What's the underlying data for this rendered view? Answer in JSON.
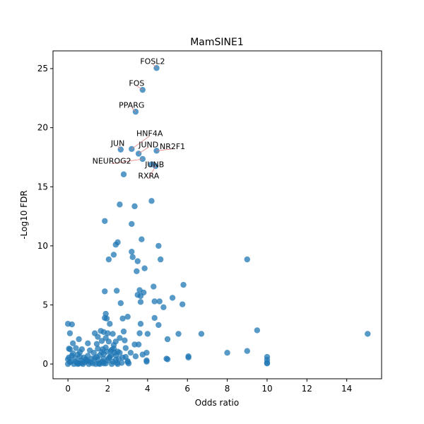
{
  "chart_data": {
    "type": "scatter",
    "title": "MamSINE1",
    "xlabel": "Odds ratio",
    "ylabel": "-Log10 FDR",
    "xlim": [
      -0.75,
      15.75
    ],
    "ylim": [
      -1.25,
      26.5
    ],
    "xticks": [
      0,
      2,
      4,
      6,
      8,
      10,
      12,
      14
    ],
    "yticks": [
      0,
      5,
      10,
      15,
      20,
      25
    ],
    "grid": false,
    "point_color": "#1f77b4",
    "annotation_line_color": "#e08080",
    "labeled_points": [
      {
        "label": "FOSL2",
        "x": 4.45,
        "y": 25.05,
        "label_x": 4.25,
        "label_y": 25.4
      },
      {
        "label": "FOS",
        "x": 3.75,
        "y": 23.2,
        "label_x": 3.45,
        "label_y": 23.55
      },
      {
        "label": "PPARG",
        "x": 3.4,
        "y": 21.35,
        "label_x": 3.2,
        "label_y": 21.7
      },
      {
        "label": "HNF4A",
        "x": 3.2,
        "y": 18.2,
        "label_x": 4.1,
        "label_y": 19.3
      },
      {
        "label": "JUN",
        "x": 2.65,
        "y": 18.15,
        "label_x": 2.5,
        "label_y": 18.45
      },
      {
        "label": "JUND",
        "x": 3.55,
        "y": 17.8,
        "label_x": 4.05,
        "label_y": 18.35
      },
      {
        "label": "NR2F1",
        "x": 4.45,
        "y": 18.05,
        "label_x": 5.25,
        "label_y": 18.2
      },
      {
        "label": "NEUROG2",
        "x": 3.75,
        "y": 17.35,
        "label_x": 2.2,
        "label_y": 16.95
      },
      {
        "label": "JUNB",
        "x": 4.2,
        "y": 16.9,
        "label_x": 4.35,
        "label_y": 16.65
      },
      {
        "label": "RXRA",
        "x": 4.4,
        "y": 16.75,
        "label_x": 4.05,
        "label_y": 15.7
      }
    ],
    "points": [
      [
        4.45,
        25.05
      ],
      [
        3.75,
        23.2
      ],
      [
        3.4,
        21.35
      ],
      [
        2.65,
        18.15
      ],
      [
        3.2,
        18.2
      ],
      [
        3.55,
        17.8
      ],
      [
        4.45,
        18.05
      ],
      [
        3.75,
        17.35
      ],
      [
        4.2,
        16.9
      ],
      [
        4.4,
        16.75
      ],
      [
        2.8,
        16.05
      ],
      [
        4.2,
        13.8
      ],
      [
        2.6,
        13.5
      ],
      [
        3.35,
        13.35
      ],
      [
        1.85,
        12.1
      ],
      [
        3.2,
        11.85
      ],
      [
        3.7,
        10.55
      ],
      [
        2.5,
        10.3
      ],
      [
        2.4,
        10.1
      ],
      [
        4.55,
        10.0
      ],
      [
        3.2,
        9.5
      ],
      [
        2.3,
        9.25
      ],
      [
        2.05,
        8.85
      ],
      [
        3.25,
        9.05
      ],
      [
        3.5,
        8.7
      ],
      [
        4.65,
        8.85
      ],
      [
        9.0,
        8.85
      ],
      [
        3.85,
        8.1
      ],
      [
        3.45,
        7.85
      ],
      [
        5.8,
        6.7
      ],
      [
        4.3,
        6.55
      ],
      [
        1.85,
        6.15
      ],
      [
        2.45,
        6.2
      ],
      [
        3.6,
        6.25
      ],
      [
        3.8,
        6.05
      ],
      [
        3.5,
        5.85
      ],
      [
        3.65,
        5.75
      ],
      [
        5.25,
        5.6
      ],
      [
        3.65,
        5.25
      ],
      [
        4.35,
        5.3
      ],
      [
        4.6,
        5.3
      ],
      [
        2.65,
        5.15
      ],
      [
        5.75,
        5.05
      ],
      [
        4.8,
        4.8
      ],
      [
        1.9,
        4.25
      ],
      [
        1.85,
        3.9
      ],
      [
        1.95,
        3.85
      ],
      [
        2.75,
        3.85
      ],
      [
        3.0,
        4.0
      ],
      [
        4.35,
        3.9
      ],
      [
        0.0,
        3.4
      ],
      [
        0.2,
        3.35
      ],
      [
        2.1,
        3.4
      ],
      [
        3.65,
        3.4
      ],
      [
        4.55,
        3.3
      ],
      [
        9.5,
        2.85
      ],
      [
        1.65,
        2.8
      ],
      [
        1.8,
        2.7
      ],
      [
        1.35,
        2.6
      ],
      [
        2.8,
        2.75
      ],
      [
        0.1,
        2.6
      ],
      [
        3.6,
        2.6
      ],
      [
        4.0,
        2.55
      ],
      [
        5.55,
        2.55
      ],
      [
        6.7,
        2.55
      ],
      [
        15.05,
        2.55
      ],
      [
        2.25,
        2.55
      ],
      [
        2.0,
        2.6
      ],
      [
        0.55,
        2.1
      ],
      [
        5.0,
        2.1
      ],
      [
        1.5,
        2.3
      ],
      [
        1.9,
        2.2
      ],
      [
        2.6,
        2.2
      ],
      [
        2.85,
        2.0
      ],
      [
        1.7,
        1.95
      ],
      [
        2.05,
        1.9
      ],
      [
        2.4,
        1.9
      ],
      [
        0.25,
        1.75
      ],
      [
        1.0,
        1.75
      ],
      [
        1.45,
        1.7
      ],
      [
        3.35,
        1.65
      ],
      [
        3.55,
        1.65
      ],
      [
        0.05,
        1.3
      ],
      [
        0.1,
        1.25
      ],
      [
        0.4,
        1.35
      ],
      [
        0.7,
        1.25
      ],
      [
        1.5,
        1.3
      ],
      [
        1.75,
        1.25
      ],
      [
        2.3,
        1.3
      ],
      [
        2.9,
        1.35
      ],
      [
        1.1,
        1.15
      ],
      [
        2.15,
        1.1
      ],
      [
        9.0,
        1.1
      ],
      [
        2.5,
        1.05
      ],
      [
        3.15,
        0.95
      ],
      [
        3.95,
        0.95
      ],
      [
        8.0,
        0.95
      ],
      [
        1.3,
        0.95
      ],
      [
        1.8,
        0.85
      ],
      [
        3.75,
        0.8
      ],
      [
        0.5,
        0.8
      ],
      [
        0.2,
        0.7
      ],
      [
        2.4,
        0.75
      ],
      [
        1.0,
        0.7
      ],
      [
        1.6,
        0.75
      ],
      [
        3.4,
        0.65
      ],
      [
        0.6,
        0.6
      ],
      [
        1.45,
        0.6
      ],
      [
        2.1,
        0.6
      ],
      [
        6.05,
        0.55
      ],
      [
        6.05,
        0.65
      ],
      [
        10.0,
        0.6
      ],
      [
        0.8,
        0.55
      ],
      [
        2.75,
        0.55
      ],
      [
        0.35,
        0.5
      ],
      [
        1.2,
        0.45
      ],
      [
        2.55,
        0.45
      ],
      [
        4.95,
        0.45
      ],
      [
        5.0,
        0.4
      ],
      [
        10.0,
        0.35
      ],
      [
        0.0,
        0.4
      ],
      [
        0.65,
        0.3
      ],
      [
        1.5,
        0.35
      ],
      [
        2.0,
        0.3
      ],
      [
        3.95,
        0.3
      ],
      [
        3.95,
        0.2
      ],
      [
        1.0,
        0.25
      ],
      [
        1.7,
        0.15
      ],
      [
        2.25,
        0.2
      ],
      [
        3.0,
        0.25
      ],
      [
        0.45,
        0.1
      ],
      [
        0.85,
        0.15
      ],
      [
        1.25,
        0.05
      ],
      [
        1.9,
        0.05
      ],
      [
        3.05,
        0.05
      ],
      [
        3.0,
        0.15
      ],
      [
        10.0,
        0.05
      ],
      [
        10.0,
        0.1
      ],
      [
        0.0,
        0.0
      ],
      [
        0.3,
        0.0
      ],
      [
        0.55,
        0.05
      ],
      [
        0.75,
        0.0
      ],
      [
        1.05,
        0.0
      ],
      [
        1.4,
        0.0
      ],
      [
        1.6,
        0.0
      ],
      [
        2.2,
        0.0
      ],
      [
        2.5,
        0.0
      ],
      [
        0.1,
        0.15
      ],
      [
        0.15,
        0.2
      ],
      [
        0.7,
        0.1
      ],
      [
        1.55,
        0.05
      ],
      [
        2.7,
        0.1
      ],
      [
        1.8,
        0.45
      ],
      [
        2.05,
        0.5
      ],
      [
        2.4,
        0.35
      ],
      [
        0.4,
        0.2
      ],
      [
        1.15,
        0.15
      ],
      [
        2.35,
        0.95
      ],
      [
        2.6,
        0.95
      ],
      [
        2.15,
        0.7
      ],
      [
        0.9,
        0.4
      ],
      [
        1.35,
        0.5
      ],
      [
        2.2,
        1.2
      ],
      [
        1.95,
        1.05
      ],
      [
        1.7,
        1.0
      ],
      [
        1.9,
        1.4
      ],
      [
        2.3,
        1.6
      ],
      [
        0.05,
        0.55
      ],
      [
        0.25,
        0.9
      ],
      [
        0.6,
        1.0
      ],
      [
        0.95,
        0.3
      ],
      [
        1.75,
        0.2
      ],
      [
        2.9,
        0.6
      ],
      [
        0.5,
        0.0
      ],
      [
        1.8,
        0.05
      ],
      [
        2.45,
        0.1
      ]
    ]
  }
}
